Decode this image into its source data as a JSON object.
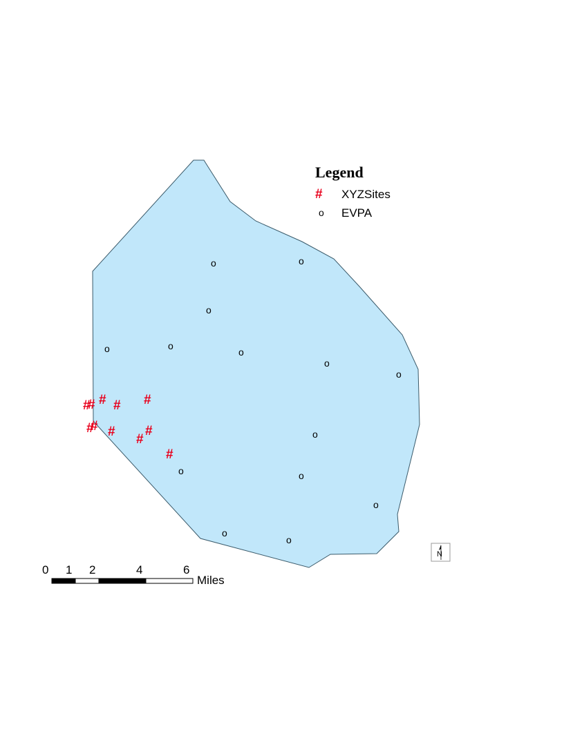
{
  "map": {
    "fill_color": "#c1e7fa",
    "outline_color": "#3a5a6a"
  },
  "legend": {
    "title": "Legend",
    "items": [
      {
        "label": "XYZSites",
        "symbol": "#",
        "color": "#e8001c"
      },
      {
        "label": "EVPA",
        "symbol": "o",
        "color": "#000000"
      }
    ]
  },
  "layers": {
    "xyz_sites": {
      "symbol": "#",
      "color": "#e8001c",
      "count": 12
    },
    "evpa": {
      "symbol": "o",
      "color": "#000000",
      "count": 16
    }
  },
  "scale_bar": {
    "tick_labels": [
      "0",
      "1",
      "2",
      "4",
      "6"
    ],
    "unit": "Miles"
  },
  "north_arrow": {
    "label": "N",
    "icon": "north-arrow-icon"
  }
}
